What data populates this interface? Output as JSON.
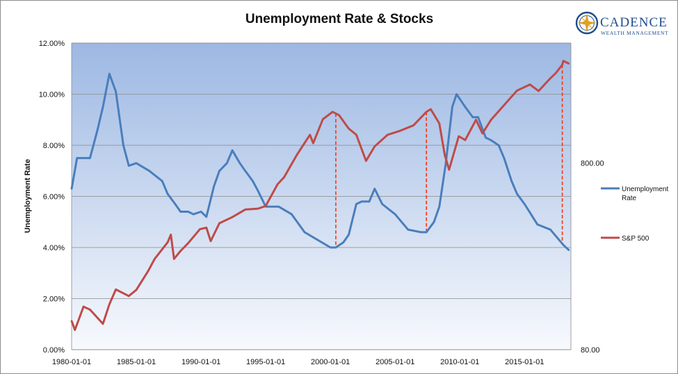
{
  "logo": {
    "name": "CADENCE",
    "tagline": "WEALTH MANAGEMENT"
  },
  "colors": {
    "unemployment": "#4a7ebb",
    "sp500": "#be4b48",
    "markers": "#ff3300",
    "plot_bg_top": "#9db8e3",
    "plot_bg_bottom": "#f7f9fd",
    "logo": "#1f4e8c",
    "logo_gold": "#e0a020"
  },
  "chart_data": {
    "type": "line",
    "title": "Unemployment Rate & Stocks",
    "ylabel": "Unemployment Rate",
    "ylabel_right": "",
    "ylim": [
      0,
      12
    ],
    "y_ticks": [
      "0.00%",
      "2.00%",
      "4.00%",
      "6.00%",
      "8.00%",
      "10.00%",
      "12.00%"
    ],
    "y2_scale": "log",
    "y2_ticks": [
      "80.00",
      "800.00"
    ],
    "x_ticks": [
      "1980-01-01",
      "1985-01-01",
      "1990-01-01",
      "1995-01-01",
      "2000-01-01",
      "2005-01-01",
      "2010-01-01",
      "2015-01-01"
    ],
    "grid": true,
    "legend_position": "right",
    "series": [
      {
        "name": "Unemployment Rate",
        "axis": "left",
        "x": [
          "1980-01-01",
          "1980-06-01",
          "1981-01-01",
          "1981-06-01",
          "1982-01-01",
          "1982-06-01",
          "1982-12-01",
          "1983-06-01",
          "1984-01-01",
          "1984-06-01",
          "1985-01-01",
          "1986-01-01",
          "1987-01-01",
          "1987-06-01",
          "1988-01-01",
          "1988-06-01",
          "1989-01-01",
          "1989-06-01",
          "1990-01-01",
          "1990-06-01",
          "1991-01-01",
          "1991-06-01",
          "1992-01-01",
          "1992-06-01",
          "1993-01-01",
          "1993-06-01",
          "1994-01-01",
          "1994-06-01",
          "1995-01-01",
          "1996-01-01",
          "1997-01-01",
          "1998-01-01",
          "1999-01-01",
          "2000-01-01",
          "2000-06-01",
          "2001-01-01",
          "2001-06-01",
          "2002-01-01",
          "2002-06-01",
          "2003-01-01",
          "2003-06-01",
          "2004-01-01",
          "2005-01-01",
          "2006-01-01",
          "2007-01-01",
          "2007-06-01",
          "2008-01-01",
          "2008-06-01",
          "2008-12-01",
          "2009-06-01",
          "2009-10-01",
          "2010-06-01",
          "2011-01-01",
          "2011-06-01",
          "2012-01-01",
          "2012-06-01",
          "2013-01-01",
          "2013-06-01",
          "2014-01-01",
          "2014-06-01",
          "2015-01-01",
          "2016-01-01",
          "2017-01-01",
          "2018-01-01",
          "2018-06-01"
        ],
        "y": [
          6.3,
          7.5,
          7.5,
          7.5,
          8.6,
          9.5,
          10.8,
          10.1,
          8.0,
          7.2,
          7.3,
          7.0,
          6.6,
          6.1,
          5.7,
          5.4,
          5.4,
          5.3,
          5.4,
          5.2,
          6.4,
          7.0,
          7.3,
          7.8,
          7.3,
          7.0,
          6.6,
          6.2,
          5.6,
          5.6,
          5.3,
          4.6,
          4.3,
          4.0,
          4.0,
          4.2,
          4.5,
          5.7,
          5.8,
          5.8,
          6.3,
          5.7,
          5.3,
          4.7,
          4.6,
          4.6,
          5.0,
          5.6,
          7.3,
          9.5,
          10.0,
          9.5,
          9.1,
          9.1,
          8.3,
          8.2,
          8.0,
          7.5,
          6.6,
          6.1,
          5.7,
          4.9,
          4.7,
          4.1,
          3.9
        ]
      },
      {
        "name": "S&P 500",
        "axis": "right",
        "x": [
          "1980-01-01",
          "1980-04-01",
          "1980-12-01",
          "1981-06-01",
          "1982-06-01",
          "1982-12-01",
          "1983-06-01",
          "1984-06-01",
          "1985-01-01",
          "1985-12-01",
          "1986-06-01",
          "1987-06-01",
          "1987-09-01",
          "1987-12-01",
          "1988-06-01",
          "1989-01-01",
          "1989-12-01",
          "1990-06-01",
          "1990-10-01",
          "1991-06-01",
          "1992-06-01",
          "1993-06-01",
          "1994-06-01",
          "1995-01-01",
          "1995-12-01",
          "1996-06-01",
          "1997-06-01",
          "1998-06-01",
          "1998-09-01",
          "1999-06-01",
          "2000-03-01",
          "2000-09-01",
          "2001-06-01",
          "2002-01-01",
          "2002-10-01",
          "2003-06-01",
          "2004-06-01",
          "2005-06-01",
          "2006-06-01",
          "2007-06-01",
          "2007-10-01",
          "2008-06-01",
          "2008-11-01",
          "2009-03-01",
          "2009-12-01",
          "2010-06-01",
          "2011-04-01",
          "2011-10-01",
          "2012-06-01",
          "2013-06-01",
          "2014-06-01",
          "2015-06-01",
          "2016-02-01",
          "2016-12-01",
          "2017-06-01",
          "2017-12-01",
          "2018-01-01",
          "2018-06-01"
        ],
        "y": [
          114,
          102,
          136,
          131,
          110,
          140,
          168,
          155,
          167,
          211,
          245,
          300,
          330,
          245,
          270,
          297,
          353,
          360,
          305,
          380,
          410,
          450,
          455,
          470,
          615,
          670,
          885,
          1130,
          1020,
          1370,
          1500,
          1440,
          1220,
          1130,
          820,
          980,
          1130,
          1190,
          1270,
          1500,
          1550,
          1300,
          880,
          735,
          1110,
          1060,
          1360,
          1150,
          1360,
          1630,
          1950,
          2100,
          1940,
          2240,
          2420,
          2680,
          2810,
          2720
        ]
      }
    ],
    "annotations": [
      {
        "type": "vertical-dashed",
        "x": "2000-06-01"
      },
      {
        "type": "vertical-dashed",
        "x": "2007-06-01"
      },
      {
        "type": "vertical-dashed",
        "x": "2017-12-01"
      }
    ]
  }
}
